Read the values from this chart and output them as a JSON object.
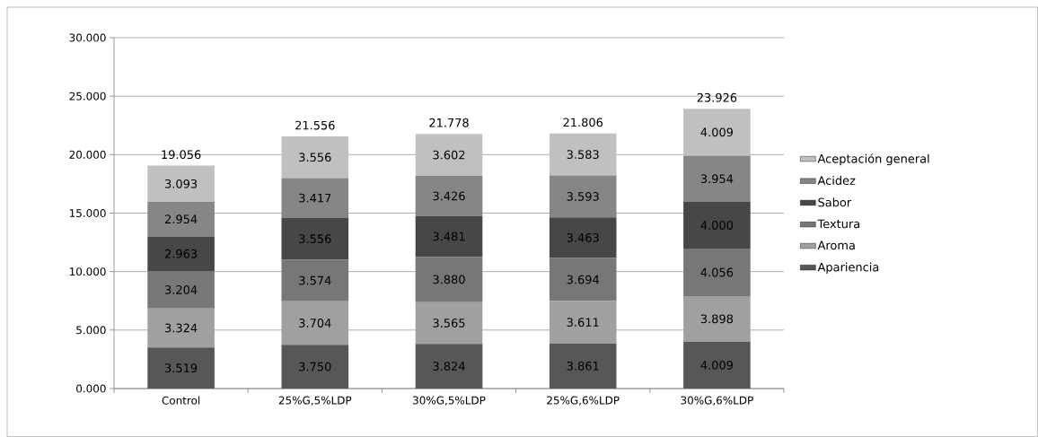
{
  "chart_data": {
    "type": "bar",
    "stacked": true,
    "categories": [
      "Control",
      "25%G,5%LDP",
      "30%G,5%LDP",
      "25%G,6%LDP",
      "30%G,6%LDP"
    ],
    "series": [
      {
        "name": "Apariencia",
        "color": "#575757",
        "values": [
          3.519,
          3.75,
          3.824,
          3.861,
          4.009
        ],
        "value_labels": [
          "3.519",
          "3.750",
          "3.824",
          "3.861",
          "4.009"
        ]
      },
      {
        "name": "Aroma",
        "color": "#a0a0a0",
        "values": [
          3.324,
          3.704,
          3.565,
          3.611,
          3.898
        ],
        "value_labels": [
          "3.324",
          "3.704",
          "3.565",
          "3.611",
          "3.898"
        ]
      },
      {
        "name": "Textura",
        "color": "#777777",
        "values": [
          3.204,
          3.574,
          3.88,
          3.694,
          4.056
        ],
        "value_labels": [
          "3.204",
          "3.574",
          "3.880",
          "3.694",
          "4.056"
        ]
      },
      {
        "name": "Sabor",
        "color": "#474747",
        "values": [
          2.963,
          3.556,
          3.481,
          3.463,
          4.0
        ],
        "value_labels": [
          "2.963",
          "3.556",
          "3.481",
          "3.463",
          "4.000"
        ]
      },
      {
        "name": "Acidez",
        "color": "#868686",
        "values": [
          2.954,
          3.417,
          3.426,
          3.593,
          3.954
        ],
        "value_labels": [
          "2.954",
          "3.417",
          "3.426",
          "3.593",
          "3.954"
        ]
      },
      {
        "name": "Aceptación general",
        "color": "#c0c0c0",
        "values": [
          3.093,
          3.556,
          3.602,
          3.583,
          4.009
        ],
        "value_labels": [
          "3.093",
          "3.556",
          "3.602",
          "3.583",
          "4.009"
        ]
      }
    ],
    "totals": [
      "19.056",
      "21.556",
      "21.778",
      "21.806",
      "23.926"
    ],
    "ylim": [
      0,
      30
    ],
    "yticks": [
      {
        "value": 0,
        "label": "0.000"
      },
      {
        "value": 5,
        "label": "5.000"
      },
      {
        "value": 10,
        "label": "10.000"
      },
      {
        "value": 15,
        "label": "15.000"
      },
      {
        "value": 20,
        "label": "20.000"
      },
      {
        "value": 25,
        "label": "25.000"
      },
      {
        "value": 30,
        "label": "30.000"
      }
    ],
    "grid": "y",
    "legend": "right"
  }
}
